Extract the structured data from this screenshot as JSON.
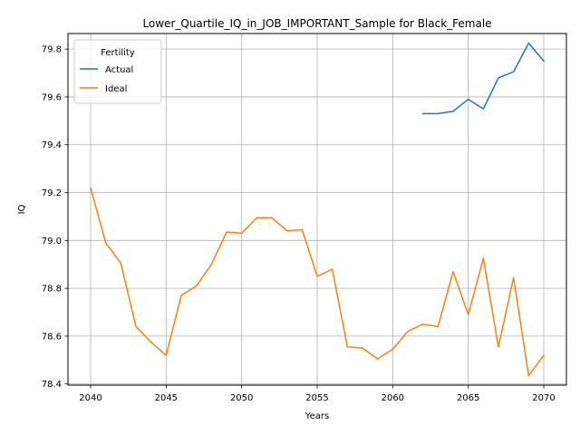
{
  "chart_data": {
    "type": "line",
    "title": "Lower_Quartile_IQ_in_JOB_IMPORTANT_Sample for Black_Female",
    "xlabel": "Years",
    "ylabel": "IQ",
    "xlim": [
      2038.5,
      2071.5
    ],
    "ylim": [
      78.395,
      79.865
    ],
    "xticks": [
      2040,
      2045,
      2050,
      2055,
      2060,
      2065,
      2070
    ],
    "yticks": [
      78.4,
      78.6,
      78.8,
      79.0,
      79.2,
      79.4,
      79.6,
      79.8
    ],
    "ytick_labels": [
      "78.4",
      "78.6",
      "78.8",
      "79.0",
      "79.2",
      "79.4",
      "79.6",
      "79.8"
    ],
    "grid": true,
    "legend": {
      "title": "Fertility",
      "placement": "top-left"
    },
    "series": [
      {
        "name": "Actual",
        "color": "#1f77b4",
        "x": [
          2062,
          2063,
          2064,
          2065,
          2066,
          2067,
          2068,
          2069,
          2070
        ],
        "y": [
          79.53,
          79.53,
          79.54,
          79.59,
          79.55,
          79.68,
          79.705,
          79.825,
          79.75
        ]
      },
      {
        "name": "Ideal",
        "color": "#ff7f0e",
        "x": [
          2040,
          2041,
          2042,
          2043,
          2044,
          2045,
          2046,
          2047,
          2048,
          2049,
          2050,
          2051,
          2052,
          2053,
          2054,
          2055,
          2056,
          2057,
          2058,
          2059,
          2060,
          2061,
          2062,
          2063,
          2064,
          2065,
          2066,
          2067,
          2068,
          2069,
          2070
        ],
        "y": [
          79.22,
          78.99,
          78.905,
          78.64,
          78.575,
          78.52,
          78.77,
          78.81,
          78.9,
          79.035,
          79.03,
          79.095,
          79.095,
          79.04,
          79.045,
          78.85,
          78.88,
          78.555,
          78.55,
          78.505,
          78.545,
          78.62,
          78.65,
          78.64,
          78.87,
          78.69,
          78.925,
          78.555,
          78.845,
          78.435,
          78.52
        ]
      }
    ]
  }
}
